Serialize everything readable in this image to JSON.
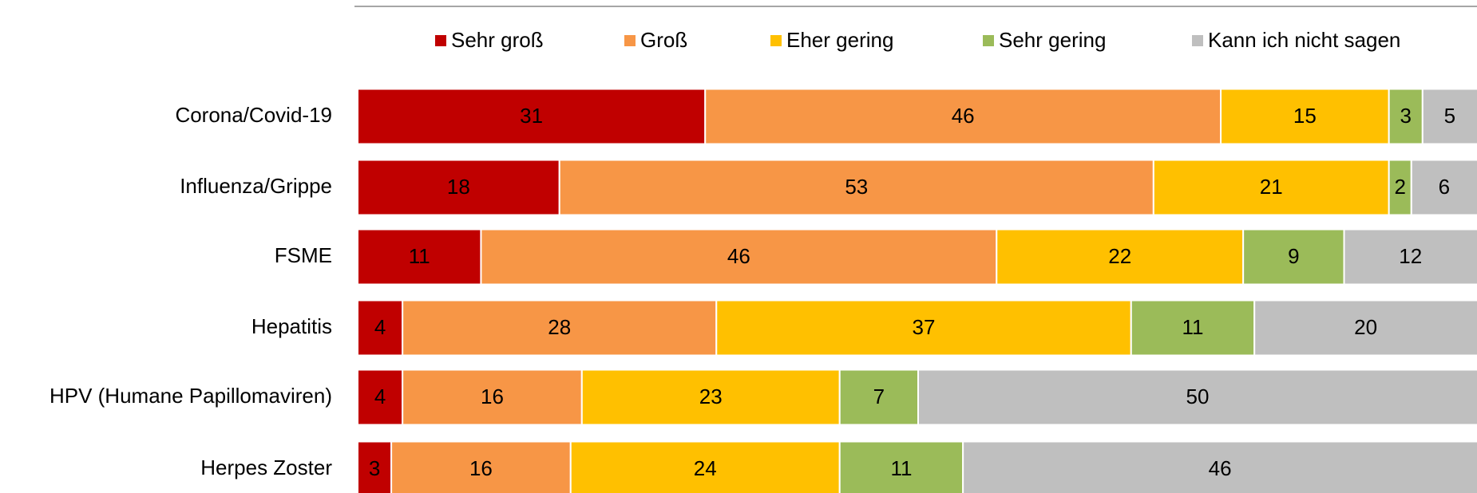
{
  "chart_data": {
    "type": "stacked-bar-horizontal",
    "categories": [
      "Corona/Covid-19",
      "Influenza/Grippe",
      "FSME",
      "Hepatitis",
      "HPV (Humane Papillomaviren)",
      "Herpes Zoster"
    ],
    "series": [
      {
        "name": "Sehr groß",
        "color": "#c00000",
        "values": [
          31,
          18,
          11,
          4,
          4,
          3
        ]
      },
      {
        "name": "Groß",
        "color": "#f79646",
        "values": [
          46,
          53,
          46,
          28,
          16,
          16
        ]
      },
      {
        "name": "Eher gering",
        "color": "#ffc000",
        "values": [
          15,
          21,
          22,
          37,
          23,
          24
        ]
      },
      {
        "name": "Sehr gering",
        "color": "#9bbb59",
        "values": [
          3,
          2,
          9,
          11,
          7,
          11
        ]
      },
      {
        "name": "Kann ich nicht sagen",
        "color": "#bfbfbf",
        "values": [
          5,
          6,
          12,
          20,
          50,
          46
        ]
      }
    ],
    "xlim": [
      0,
      100
    ]
  }
}
